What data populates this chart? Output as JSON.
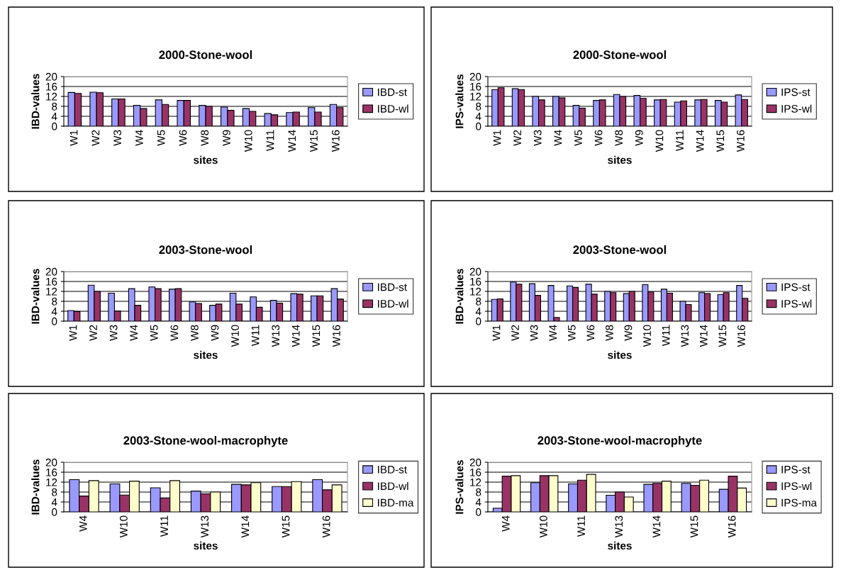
{
  "chart_data": [
    {
      "type": "bar",
      "title": "2000-Stone-wool",
      "xlabel": "sites",
      "ylabel": "IBD-values",
      "categories": [
        "W1",
        "W2",
        "W3",
        "W4",
        "W5",
        "W6",
        "W8",
        "W9",
        "W10",
        "W11",
        "W14",
        "W15",
        "W16"
      ],
      "ylim": [
        0,
        20
      ],
      "yticks": [
        0,
        4,
        8,
        12,
        16,
        20
      ],
      "grid": "y",
      "legend": "right",
      "series": [
        {
          "name": "IBD-st",
          "color": "#9999ff",
          "values": [
            13.6,
            13.7,
            11,
            8.4,
            10.6,
            10.4,
            8.4,
            7.7,
            7.1,
            5.1,
            5.5,
            7.5,
            8.8
          ]
        },
        {
          "name": "IBD-wl",
          "color": "#993366",
          "values": [
            13.2,
            13.5,
            11,
            7.1,
            8.8,
            10.4,
            8.0,
            6.4,
            6.0,
            4.6,
            5.7,
            5.7,
            7.5
          ]
        }
      ]
    },
    {
      "type": "bar",
      "title": "2000-Stone-wool",
      "xlabel": "sites",
      "ylabel": "IPS-values",
      "categories": [
        "W1",
        "W2",
        "W3",
        "W4",
        "W5",
        "W6",
        "W8",
        "W9",
        "W10",
        "W11",
        "W14",
        "W15",
        "W16"
      ],
      "ylim": [
        0,
        20
      ],
      "yticks": [
        0,
        4,
        8,
        12,
        16,
        20
      ],
      "grid": "y",
      "legend": "right",
      "series": [
        {
          "name": "IPS-st",
          "color": "#9999ff",
          "values": [
            14.7,
            15.1,
            12.0,
            12.0,
            8.4,
            10.4,
            12.8,
            12.4,
            10.6,
            9.7,
            10.6,
            10.4,
            12.6
          ]
        },
        {
          "name": "IPS-wl",
          "color": "#993366",
          "values": [
            15.5,
            14.8,
            10.6,
            11.4,
            7.3,
            10.6,
            12.0,
            11.2,
            10.8,
            10.2,
            10.8,
            9.7,
            10.8
          ]
        }
      ]
    },
    {
      "type": "bar",
      "title": "2003-Stone-wool",
      "xlabel": "sites",
      "ylabel": "IBD-values",
      "categories": [
        "W1",
        "W2",
        "W3",
        "W4",
        "W5",
        "W6",
        "W8",
        "W9",
        "W10",
        "W11",
        "W13",
        "W14",
        "W15",
        "W16"
      ],
      "ylim": [
        0,
        20
      ],
      "yticks": [
        0,
        4,
        8,
        12,
        16,
        20
      ],
      "grid": "y",
      "legend": "right",
      "series": [
        {
          "name": "IBD-st",
          "color": "#9999ff",
          "values": [
            4.3,
            14.5,
            11.3,
            13.1,
            13.8,
            12.9,
            7.8,
            6.4,
            11.3,
            9.8,
            8.4,
            11.1,
            10.2,
            13.1
          ]
        },
        {
          "name": "IBD-wl",
          "color": "#993366",
          "values": [
            3.9,
            12.0,
            4.1,
            6.4,
            13.1,
            13.1,
            7.1,
            6.9,
            6.9,
            5.6,
            7.3,
            10.9,
            10.2,
            8.9
          ]
        }
      ]
    },
    {
      "type": "bar",
      "title": "2003-Stone-wool",
      "xlabel": "sites",
      "ylabel": "IBD-values",
      "categories": [
        "W1",
        "W2",
        "W3",
        "W4",
        "W5",
        "W6",
        "W8",
        "W9",
        "W10",
        "W11",
        "W13",
        "W14",
        "W15",
        "W16"
      ],
      "ylim": [
        0,
        20
      ],
      "yticks": [
        0,
        4,
        8,
        12,
        16,
        20
      ],
      "grid": "y",
      "legend": "right",
      "series": [
        {
          "name": "IPS-st",
          "color": "#9999ff",
          "values": [
            8.8,
            15.8,
            15.1,
            14.4,
            14.2,
            14.9,
            12.0,
            11.1,
            14.7,
            12.9,
            8.0,
            11.5,
            10.7,
            14.4
          ]
        },
        {
          "name": "IPS-wl",
          "color": "#993366",
          "values": [
            9.0,
            14.9,
            10.4,
            1.5,
            13.6,
            10.9,
            11.5,
            12.0,
            11.8,
            11.3,
            6.7,
            11.1,
            11.5,
            9.2
          ]
        }
      ]
    },
    {
      "type": "bar",
      "title": "2003-Stone-wool-macrophyte",
      "xlabel": "sites",
      "ylabel": "IBD-values",
      "categories": [
        "W4",
        "W10",
        "W11",
        "W13",
        "W14",
        "W15",
        "W16"
      ],
      "ylim": [
        0,
        20
      ],
      "yticks": [
        0,
        4,
        8,
        12,
        16,
        20
      ],
      "grid": "y",
      "legend": "right",
      "series": [
        {
          "name": "IBD-st",
          "color": "#9999ff",
          "values": [
            13.0,
            11.3,
            9.7,
            8.4,
            11.1,
            10.2,
            13.0
          ]
        },
        {
          "name": "IBD-wl",
          "color": "#993366",
          "values": [
            6.4,
            6.8,
            5.6,
            7.3,
            10.9,
            10.2,
            8.9
          ]
        },
        {
          "name": "IBD-ma",
          "color": "#ffffcc",
          "values": [
            12.6,
            12.4,
            12.6,
            8.0,
            11.8,
            12.2,
            10.9
          ]
        }
      ]
    },
    {
      "type": "bar",
      "title": "2003-Stone-wool-macrophyte",
      "xlabel": "sites",
      "ylabel": "IPS-values",
      "categories": [
        "W4",
        "W10",
        "W11",
        "W13",
        "W14",
        "W15",
        "W16"
      ],
      "ylim": [
        0,
        20
      ],
      "yticks": [
        0,
        4,
        8,
        12,
        16,
        20
      ],
      "grid": "y",
      "legend": "right",
      "series": [
        {
          "name": "IPS-st",
          "color": "#9999ff",
          "values": [
            1.5,
            11.8,
            11.3,
            6.7,
            11.1,
            11.5,
            9.1
          ]
        },
        {
          "name": "IPS-wl",
          "color": "#993366",
          "values": [
            14.4,
            14.6,
            12.8,
            8.0,
            11.5,
            10.7,
            14.4
          ]
        },
        {
          "name": "IPS-ma",
          "color": "#ffffcc",
          "values": [
            14.6,
            14.6,
            15.1,
            6.0,
            12.4,
            12.8,
            9.6
          ]
        }
      ]
    }
  ]
}
